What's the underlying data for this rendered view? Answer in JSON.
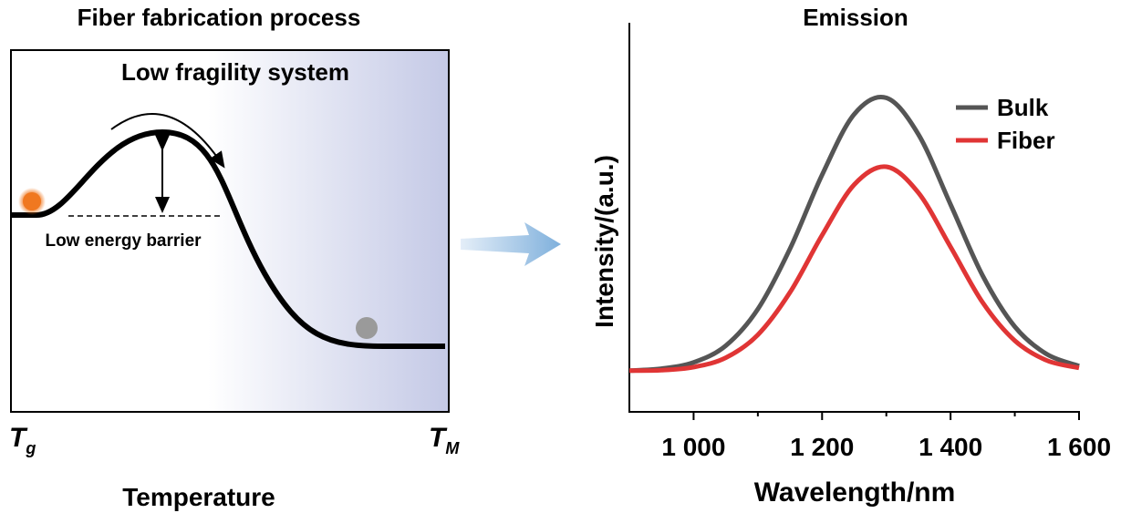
{
  "diagram": {
    "title": "Fiber fabrication process",
    "system": "Low fragility system",
    "barrier": "Low energy barrier",
    "start": {
      "main": "T",
      "sub": "g"
    },
    "end": {
      "main": "T",
      "sub": "M"
    },
    "axis_label": "Temperature"
  },
  "chart_data": {
    "type": "line",
    "title": "Emission",
    "x_label": "Wavelength/nm",
    "y_label": "Intensity/(a.u.)",
    "x": [
      900,
      950,
      1000,
      1050,
      1100,
      1150,
      1200,
      1250,
      1300,
      1350,
      1400,
      1450,
      1500,
      1550,
      1600
    ],
    "series": [
      {
        "name": "Bulk",
        "color": "#555555",
        "values": [
          0.106,
          0.111,
          0.127,
          0.17,
          0.264,
          0.419,
          0.609,
          0.765,
          0.807,
          0.713,
          0.533,
          0.35,
          0.219,
          0.148,
          0.118
        ]
      },
      {
        "name": "Fiber",
        "color": "#e03535",
        "values": [
          0.106,
          0.107,
          0.115,
          0.139,
          0.198,
          0.307,
          0.454,
          0.584,
          0.63,
          0.563,
          0.424,
          0.281,
          0.183,
          0.132,
          0.113
        ]
      }
    ],
    "xlim": [
      900,
      1600
    ],
    "ylim": [
      0,
      1
    ],
    "xticks": [
      {
        "value": 1000,
        "label": "1 000"
      },
      {
        "value": 1200,
        "label": "1 200"
      },
      {
        "value": 1400,
        "label": "1 400"
      },
      {
        "value": 1600,
        "label": "1 600"
      }
    ],
    "xminorticks": [
      1100,
      1300,
      1500
    ],
    "legend": "top-right"
  }
}
